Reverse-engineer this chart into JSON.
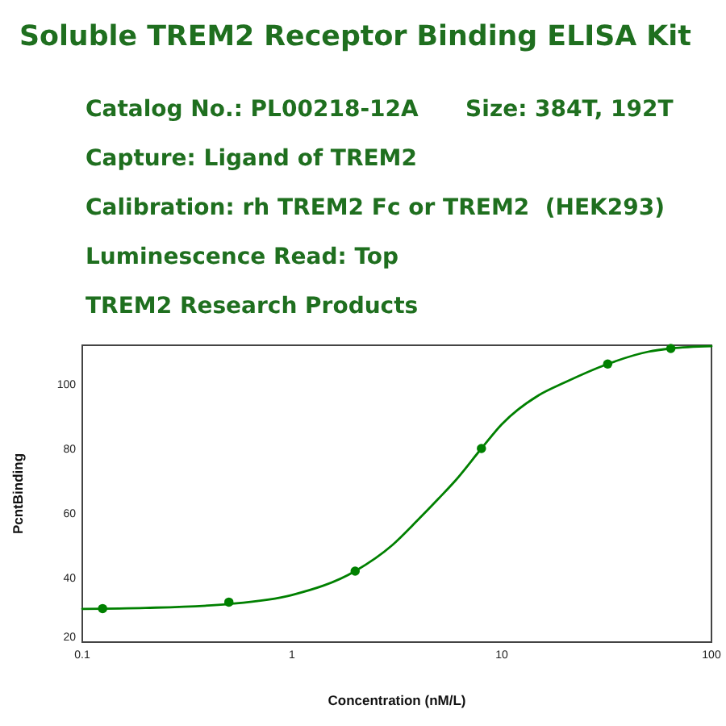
{
  "chart_data": {
    "type": "scatter",
    "title": "Soluble TREM2 Receptor Binding ELISA Kit",
    "annotations": [
      "Catalog No.: PL00218-12A      Size: 384T, 192T",
      "Capture: Ligand of TREM2",
      "Calibration: rh TREM2 Fc or TREM2  (HEK293)",
      "Luminescence Read: Top",
      "TREM2 Research Products"
    ],
    "xlabel": "Concentration (nM/L)",
    "ylabel": "PcntBinding",
    "log": "x",
    "xlim": [
      0.1,
      100
    ],
    "ylim": [
      20,
      112
    ],
    "xticks": [
      0.1,
      1,
      10,
      100
    ],
    "yticks": [
      20,
      40,
      60,
      80,
      100
    ],
    "series": [
      {
        "type": "line",
        "color": "#008000",
        "line_style": "solid",
        "x": [
          0.1,
          0.2,
          0.5,
          1,
          2,
          3,
          4,
          5,
          6,
          8,
          10,
          15,
          20,
          32,
          50,
          64,
          100
        ],
        "values": [
          30.3,
          30.6,
          31.8,
          34.6,
          42,
          50,
          58,
          64.5,
          70,
          80,
          87.5,
          96.5,
          100.5,
          106.2,
          110,
          111,
          111.7
        ]
      },
      {
        "type": "scatter",
        "color": "#008000",
        "marker": "circle",
        "x": [
          0.125,
          0.5,
          2,
          8,
          32,
          64
        ],
        "values": [
          30.4,
          32.4,
          42,
          80,
          106.2,
          111
        ]
      }
    ]
  }
}
